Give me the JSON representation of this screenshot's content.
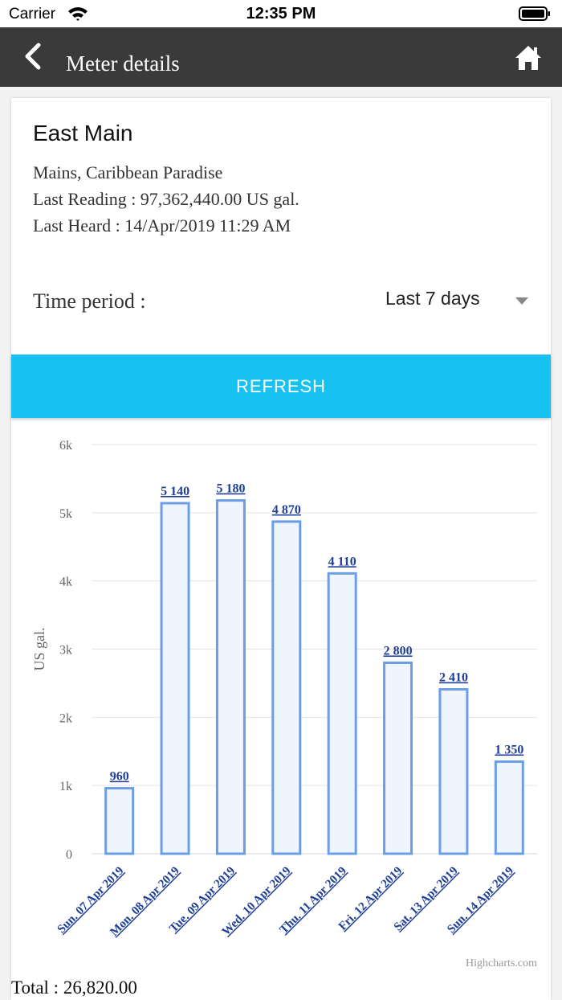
{
  "status": {
    "carrier": "Carrier",
    "time": "12:35 PM"
  },
  "nav": {
    "title": "Meter details"
  },
  "meter": {
    "name": "East Main",
    "location": "Mains, Caribbean Paradise",
    "last_reading": "Last Reading : 97,362,440.00 US gal.",
    "last_heard": "Last Heard : 14/Apr/2019 11:29 AM"
  },
  "period": {
    "label": "Time period :",
    "value": "Last 7 days"
  },
  "refresh_label": "REFRESH",
  "chart_data": {
    "type": "bar",
    "categories": [
      "Sun. 07 Apr 2019",
      "Mon. 08 Apr 2019",
      "Tue. 09 Apr 2019",
      "Wed. 10 Apr 2019",
      "Thu. 11 Apr 2019",
      "Fri. 12 Apr 2019",
      "Sat. 13 Apr 2019",
      "Sun. 14 Apr 2019"
    ],
    "values": [
      960,
      5140,
      5180,
      4870,
      4110,
      2800,
      2410,
      1350
    ],
    "data_labels": [
      "960",
      "5 140",
      "5 180",
      "4 870",
      "4 110",
      "2 800",
      "2 410",
      "1 350"
    ],
    "ylabel": "US gal.",
    "ylim": [
      0,
      6000
    ],
    "y_ticks": [
      0,
      1000,
      2000,
      3000,
      4000,
      5000,
      6000
    ],
    "y_tick_labels": [
      "0",
      "1k",
      "2k",
      "3k",
      "4k",
      "5k",
      "6k"
    ],
    "grid": true,
    "credit": "Highcharts.com",
    "colors": {
      "bar_fill": "#eef5fd",
      "bar_stroke": "#6c9ee6",
      "label": "#1f3f96",
      "grid": "#e3e3e3"
    }
  },
  "total": "Total : 26,820.00"
}
